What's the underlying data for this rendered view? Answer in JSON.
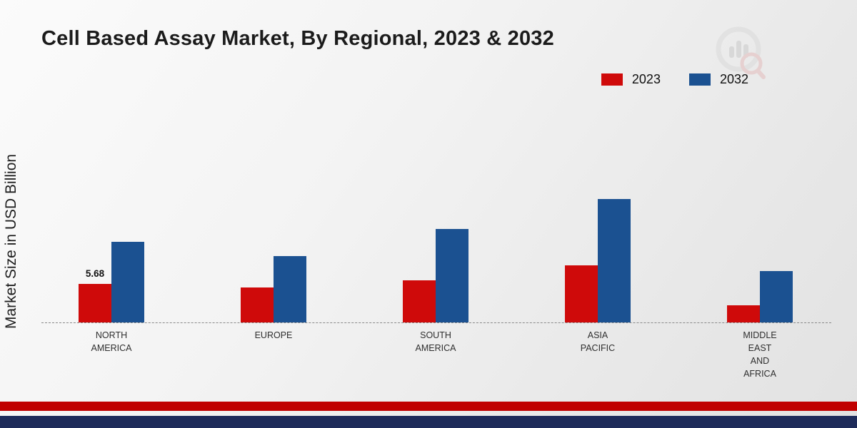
{
  "page": {
    "title": "Cell Based Assay Market, By Regional, 2023 & 2032",
    "y_axis_label": "Market Size in USD Billion"
  },
  "legend": {
    "items": [
      {
        "label": "2023",
        "color": "#cf0a0a"
      },
      {
        "label": "2032",
        "color": "#1b5191"
      }
    ]
  },
  "colors": {
    "series_2023": "#cf0a0a",
    "series_2032": "#1b5191",
    "footer_red": "#c00000",
    "footer_navy": "#1e2b5a",
    "baseline": "#8a8a8a"
  },
  "chart_data": {
    "type": "bar",
    "title": "Cell Based Assay Market, By Regional, 2023 & 2032",
    "xlabel": "",
    "ylabel": "Market Size in USD Billion",
    "categories": [
      "NORTH AMERICA",
      "EUROPE",
      "SOUTH AMERICA",
      "ASIA PACIFIC",
      "MIDDLE EAST AND AFRICA"
    ],
    "category_label_lines": [
      [
        "NORTH",
        "AMERICA"
      ],
      [
        "EUROPE"
      ],
      [
        "SOUTH",
        "AMERICA"
      ],
      [
        "ASIA",
        "PACIFIC"
      ],
      [
        "MIDDLE",
        "EAST",
        "AND",
        "AFRICA"
      ]
    ],
    "series": [
      {
        "name": "2023",
        "color": "#cf0a0a",
        "values": [
          5.68,
          5.2,
          6.2,
          8.5,
          2.5
        ]
      },
      {
        "name": "2032",
        "color": "#1b5191",
        "values": [
          12.0,
          9.8,
          13.9,
          18.3,
          7.6
        ]
      }
    ],
    "data_labels": [
      {
        "series": "2023",
        "category": "NORTH AMERICA",
        "category_index": 0,
        "text": "5.68"
      }
    ],
    "ylim": [
      0,
      20
    ],
    "grid": false,
    "legend_position": "top-right",
    "baseline_style": "dashed"
  }
}
